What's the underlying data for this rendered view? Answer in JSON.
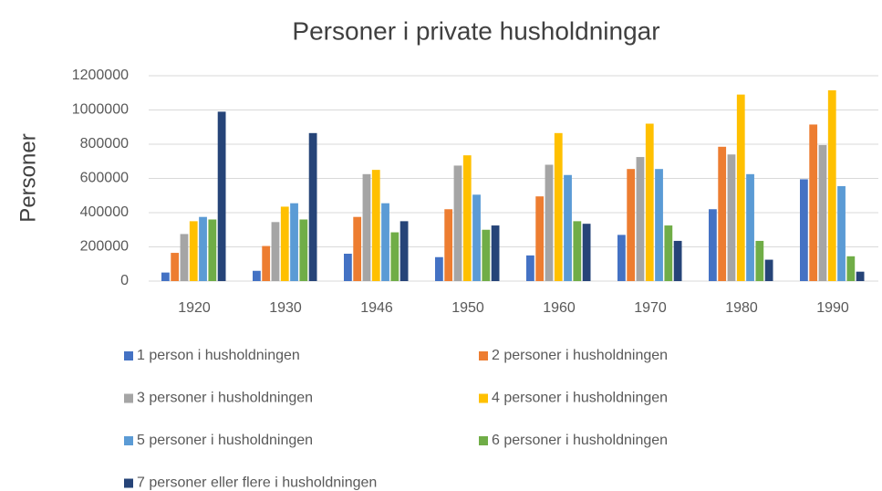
{
  "chart_data": {
    "type": "bar",
    "title": "Personer i private husholdningar",
    "y_label": "Personer",
    "categories": [
      "1920",
      "1930",
      "1946",
      "1950",
      "1960",
      "1970",
      "1980",
      "1990"
    ],
    "series": [
      {
        "name": "1 person i husholdningen",
        "color": "#4472c4",
        "values": [
          50000,
          60000,
          160000,
          140000,
          150000,
          270000,
          420000,
          595000
        ]
      },
      {
        "name": "2 personer i husholdningen",
        "color": "#ed7d31",
        "values": [
          165000,
          205000,
          375000,
          420000,
          495000,
          655000,
          785000,
          915000
        ]
      },
      {
        "name": "3 personer i husholdningen",
        "color": "#a5a5a5",
        "values": [
          275000,
          345000,
          625000,
          675000,
          680000,
          725000,
          740000,
          795000
        ]
      },
      {
        "name": "4 personer i husholdningen",
        "color": "#ffc000",
        "values": [
          350000,
          435000,
          650000,
          735000,
          865000,
          920000,
          1090000,
          1115000
        ]
      },
      {
        "name": "5 personer i husholdningen",
        "color": "#5b9bd5",
        "values": [
          375000,
          455000,
          455000,
          505000,
          620000,
          655000,
          625000,
          555000
        ]
      },
      {
        "name": "6 personer i husholdningen",
        "color": "#70ad47",
        "values": [
          360000,
          360000,
          285000,
          300000,
          350000,
          325000,
          235000,
          145000
        ]
      },
      {
        "name": "7 personer eller flere i husholdningen",
        "color": "#264478",
        "values": [
          990000,
          865000,
          350000,
          325000,
          335000,
          235000,
          125000,
          55000
        ]
      }
    ],
    "ylim": [
      0,
      1200000
    ],
    "yticks": [
      0,
      200000,
      400000,
      600000,
      800000,
      1000000,
      1200000
    ],
    "grid": true,
    "legend": "bottom"
  }
}
